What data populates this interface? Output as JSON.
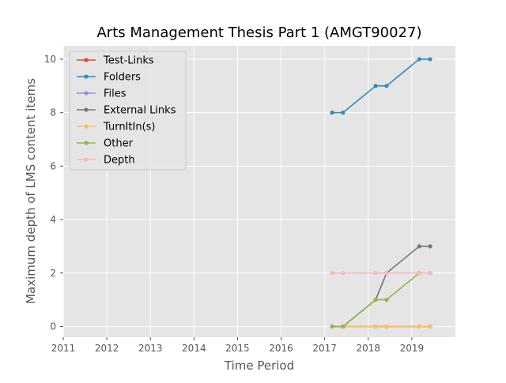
{
  "chart_data": {
    "type": "line",
    "title": "Arts Management Thesis Part 1 (AMGT90027)",
    "xlabel": "Time Period",
    "ylabel": "Maximum depth of LMS content items",
    "xlim": [
      2011,
      2020
    ],
    "ylim": [
      -0.4,
      10.5
    ],
    "x_ticks": [
      "2011",
      "2012",
      "2013",
      "2014",
      "2015",
      "2016",
      "2017",
      "2018",
      "2019"
    ],
    "y_ticks": [
      "0",
      "2",
      "4",
      "6",
      "8",
      "10"
    ],
    "grid": true,
    "legend_position": "top-left",
    "x": [
      2017.17,
      2017.42,
      2018.17,
      2018.42,
      2019.17,
      2019.42
    ],
    "series": [
      {
        "name": "Test-Links",
        "color": "#E24A33",
        "values": [
          0,
          0,
          0,
          0,
          0,
          0
        ]
      },
      {
        "name": "Folders",
        "color": "#348ABD",
        "values": [
          8,
          8,
          9,
          9,
          10,
          10
        ]
      },
      {
        "name": "Files",
        "color": "#988ED5",
        "values": [
          0,
          0,
          1,
          2,
          2,
          2
        ]
      },
      {
        "name": "External Links",
        "color": "#777777",
        "values": [
          0,
          0,
          1,
          2,
          3,
          3
        ]
      },
      {
        "name": "TurnItIn(s)",
        "color": "#FBC15E",
        "values": [
          0,
          0,
          0,
          0,
          0,
          0
        ]
      },
      {
        "name": "Other",
        "color": "#8EBA42",
        "values": [
          0,
          0,
          1,
          1,
          2,
          2
        ]
      },
      {
        "name": "Depth",
        "color": "#FFB5B8",
        "values": [
          2,
          2,
          2,
          2,
          2,
          2
        ]
      }
    ]
  }
}
